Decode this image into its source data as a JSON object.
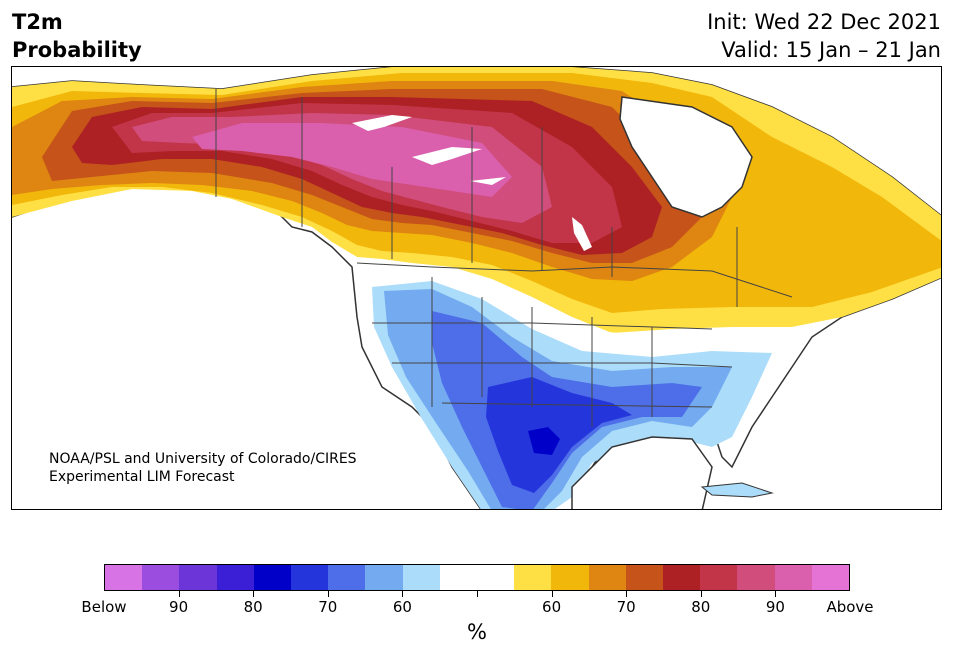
{
  "header": {
    "title_line1": "T2m",
    "title_line2": "Probability",
    "init": "Init: Wed 22 Dec 2021",
    "valid": "Valid: 15 Jan – 21 Jan"
  },
  "credit": {
    "line1": "NOAA/PSL and University of Colorado/CIRES",
    "line2": "Experimental LIM Forecast"
  },
  "colorbar": {
    "unit": "%",
    "colors": [
      "#d873e6",
      "#9b4de0",
      "#6c35d8",
      "#3a1fd6",
      "#0000c8",
      "#2535dc",
      "#4d6ee8",
      "#73aaf0",
      "#abdcfa",
      "#ffffff",
      "#ffffff",
      "#ffe044",
      "#f2b70b",
      "#de8611",
      "#c5531a",
      "#ad2124",
      "#c23549",
      "#d04d7c",
      "#da5fad",
      "#e573d6"
    ],
    "labels": [
      "Below",
      "90",
      "80",
      "70",
      "60",
      "60",
      "70",
      "80",
      "90",
      "Above"
    ]
  },
  "map_palette": {
    "ocean": "#ffffff",
    "border": "#444444",
    "warm": [
      "#ffe044",
      "#f2b70b",
      "#de8611",
      "#c5531a",
      "#ad2124",
      "#c23549",
      "#d04d7c",
      "#da5fad"
    ],
    "cold": [
      "#abdcfa",
      "#73aaf0",
      "#4d6ee8",
      "#2535dc",
      "#0000c8"
    ]
  }
}
